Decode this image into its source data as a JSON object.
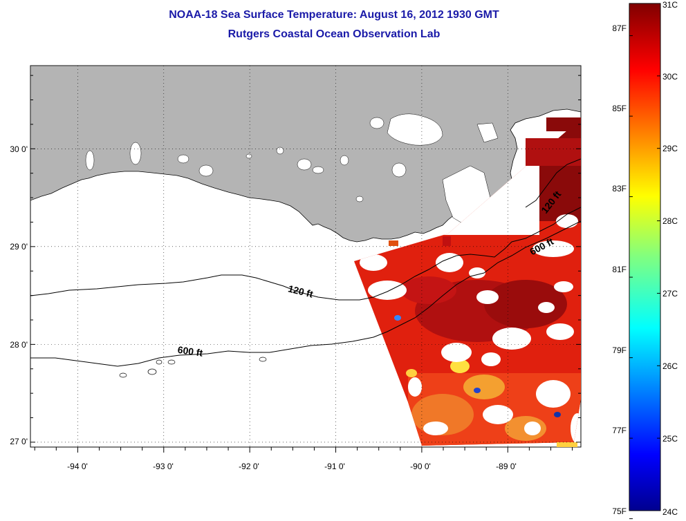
{
  "title": {
    "line1": "NOAA-18 Sea Surface Temperature:  August 16, 2012 1930 GMT",
    "line2": "Rutgers Coastal Ocean Observation Lab"
  },
  "map": {
    "longitude_labels": [
      "-94 0'",
      "-93 0'",
      "-92 0'",
      "-91 0'",
      "-90 0'",
      "-89 0'"
    ],
    "latitude_labels": [
      "30 0'",
      "29 0'",
      "28 0'",
      "27 0'"
    ],
    "longitude_values": [
      -94,
      -93,
      -92,
      -91,
      -90,
      -89
    ],
    "latitude_values": [
      30,
      29,
      28,
      27
    ],
    "extent": {
      "lon_min": -94.55,
      "lon_max": -88.15,
      "lat_min": 26.95,
      "lat_max": 30.85
    },
    "contour_labels": {
      "c120_west": "120 ft",
      "c600_west": "600 ft",
      "c120_east": "120 ft",
      "c600_east": "600 ft"
    },
    "land_color": "#b4b4b4",
    "water_color": "#ffffff"
  },
  "colorbar": {
    "fahrenheit_labels": [
      "87F",
      "85F",
      "83F",
      "81F",
      "79F",
      "77F",
      "75F"
    ],
    "celsius_labels": [
      "31C",
      "30C",
      "29C",
      "28C",
      "27C",
      "26C",
      "25C",
      "24C"
    ],
    "min_c": 24,
    "max_c": 31,
    "colormap": "jet"
  }
}
